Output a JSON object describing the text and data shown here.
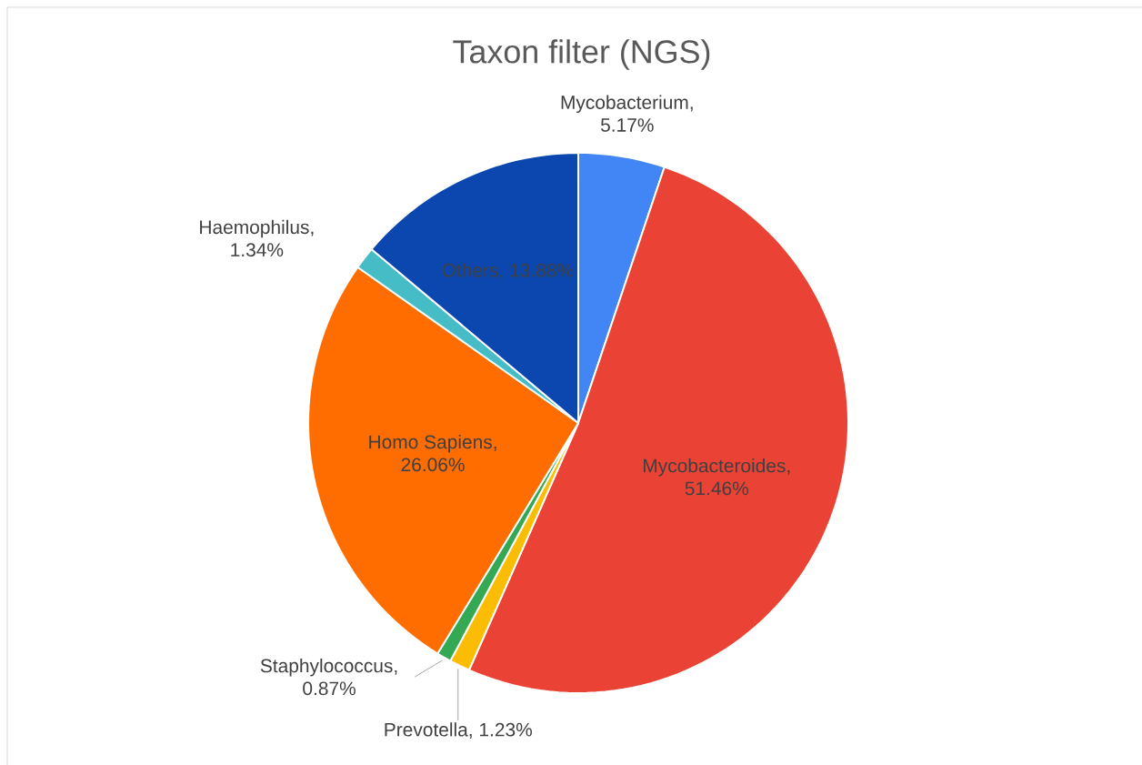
{
  "chart_data": {
    "type": "pie",
    "title": "Taxon filter (NGS)",
    "categories": [
      "Mycobacterium",
      "Mycobacteroides",
      "Prevotella",
      "Staphylococcus",
      "Homo Sapiens",
      "Haemophilus",
      "Others"
    ],
    "values": [
      5.17,
      51.46,
      1.23,
      0.87,
      26.06,
      1.34,
      13.88
    ],
    "colors": [
      "#4285f4",
      "#ea4335",
      "#fbbc04",
      "#34a853",
      "#ff6d01",
      "#46bdc6",
      "#0b47ae"
    ],
    "value_labels": [
      ", 5.17%",
      ", 51.46%",
      ", 1.23%",
      ", 0.87%",
      ", 26.06%",
      ", 1.34%",
      ", 13.88%"
    ]
  }
}
